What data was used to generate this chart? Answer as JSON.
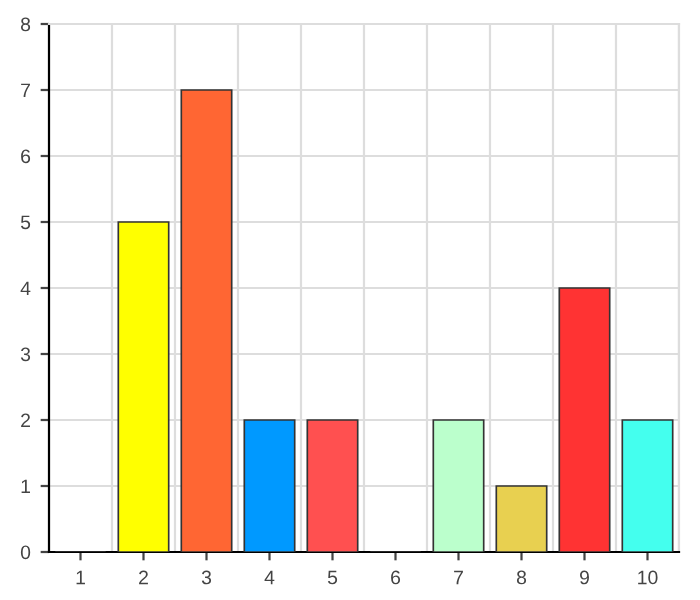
{
  "chart_data": {
    "type": "bar",
    "categories": [
      "1",
      "2",
      "3",
      "4",
      "5",
      "6",
      "7",
      "8",
      "9",
      "10"
    ],
    "values": [
      0,
      5,
      7,
      2,
      2,
      0,
      2,
      1,
      4,
      2
    ],
    "colors": [
      "#333333",
      "#ffff00",
      "#ff6633",
      "#0099ff",
      "#ff5050",
      "#333333",
      "#bbffcc",
      "#e8d050",
      "#ff3333",
      "#44ffee"
    ],
    "ylim": [
      0,
      8
    ],
    "yticks": [
      0,
      1,
      2,
      3,
      4,
      5,
      6,
      7,
      8
    ],
    "grid": true
  }
}
